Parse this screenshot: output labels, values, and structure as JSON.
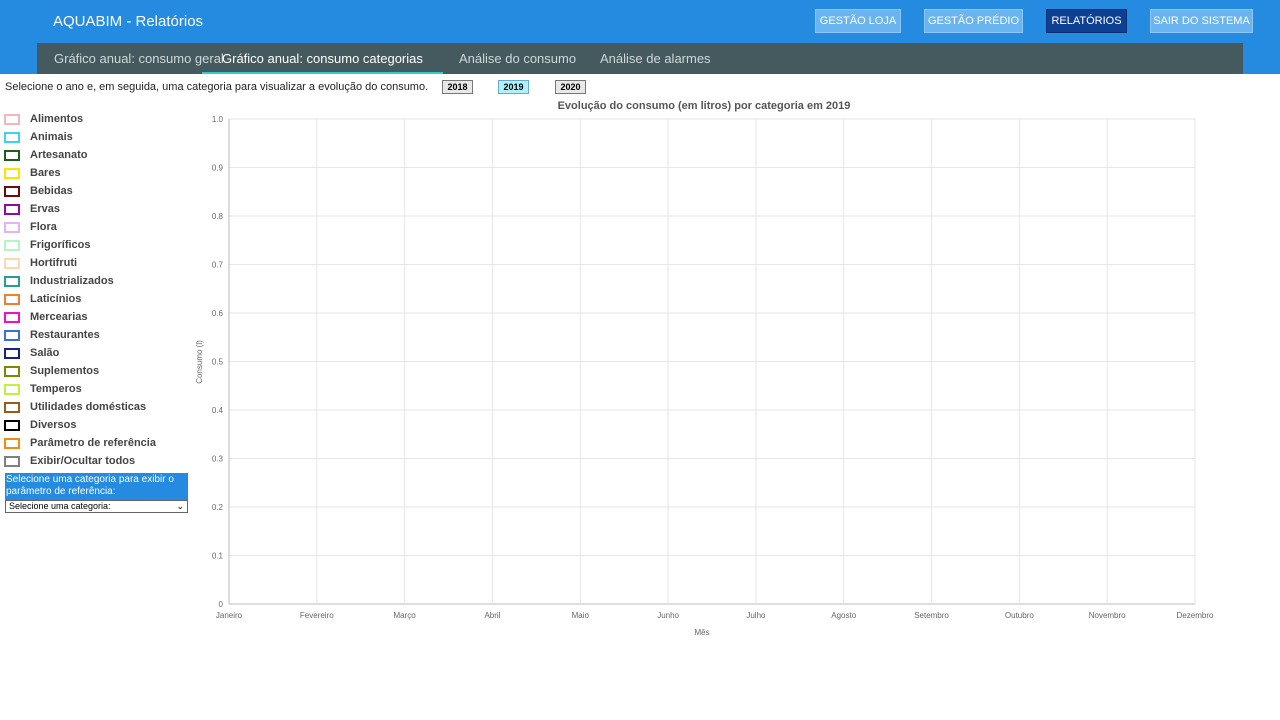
{
  "header": {
    "title": "AQUABIM - Relatórios",
    "nav": [
      {
        "label": "GESTÃO LOJA"
      },
      {
        "label": "GESTÃO PRÉDIO"
      },
      {
        "label": "RELATÓRIOS",
        "active": true
      },
      {
        "label": "SAIR DO SISTEMA"
      }
    ]
  },
  "tabs": [
    {
      "label": "Gráfico anual: consumo geral"
    },
    {
      "label": "Gráfico anual: consumo categorias",
      "active": true
    },
    {
      "label": "Análise do consumo"
    },
    {
      "label": "Análise de alarmes"
    }
  ],
  "intro": "Selecione o ano e, em seguida, uma categoria para visualizar a evolução do consumo.",
  "years": [
    {
      "label": "2018"
    },
    {
      "label": "2019",
      "active": true
    },
    {
      "label": "2020"
    }
  ],
  "legend": [
    {
      "label": "Alimentos",
      "color": "#f4b6bc"
    },
    {
      "label": "Animais",
      "color": "#3fd2ee"
    },
    {
      "label": "Artesanato",
      "color": "#1b5e20"
    },
    {
      "label": "Bares",
      "color": "#f6e600"
    },
    {
      "label": "Bebidas",
      "color": "#6d0a0a"
    },
    {
      "label": "Ervas",
      "color": "#8e0aa8"
    },
    {
      "label": "Flora",
      "color": "#e2b4f4"
    },
    {
      "label": "Frigoríficos",
      "color": "#b2f7c0"
    },
    {
      "label": "Hortifruti",
      "color": "#fbd8b0"
    },
    {
      "label": "Industrializados",
      "color": "#2a9d8f"
    },
    {
      "label": "Laticínios",
      "color": "#f08030"
    },
    {
      "label": "Mercearias",
      "color": "#f010c8"
    },
    {
      "label": "Restaurantes",
      "color": "#3b6fd8"
    },
    {
      "label": "Salão",
      "color": "#1a237e"
    },
    {
      "label": "Suplementos",
      "color": "#7a8a00"
    },
    {
      "label": "Temperos",
      "color": "#c0f040"
    },
    {
      "label": "Utilidades domésticas",
      "color": "#9a5a1a"
    },
    {
      "label": "Diversos",
      "color": "#000000"
    },
    {
      "label": "Parâmetro de referência",
      "color": "#f58a10"
    },
    {
      "label": "Exibir/Ocultar todos",
      "color": "#808080"
    }
  ],
  "reference_prompt": "Selecione uma categoria para exibir o parâmetro de referência:",
  "category_select": {
    "value": "Selecione uma categoria:"
  },
  "chart_data": {
    "type": "line",
    "title": "Evolução do consumo (em litros) por categoria em 2019",
    "xlabel": "Mês",
    "ylabel": "Consumo (l)",
    "categories": [
      "Janeiro",
      "Fevereiro",
      "Março",
      "Abril",
      "Maio",
      "Junho",
      "Julho",
      "Agosto",
      "Setembro",
      "Outubro",
      "Novembro",
      "Dezembro"
    ],
    "ylim": [
      0,
      1
    ],
    "yticks": [
      "0",
      "0.1",
      "0.2",
      "0.3",
      "0.4",
      "0.5",
      "0.6",
      "0.7",
      "0.8",
      "0.9",
      "1.0"
    ],
    "grid": true,
    "series": []
  }
}
